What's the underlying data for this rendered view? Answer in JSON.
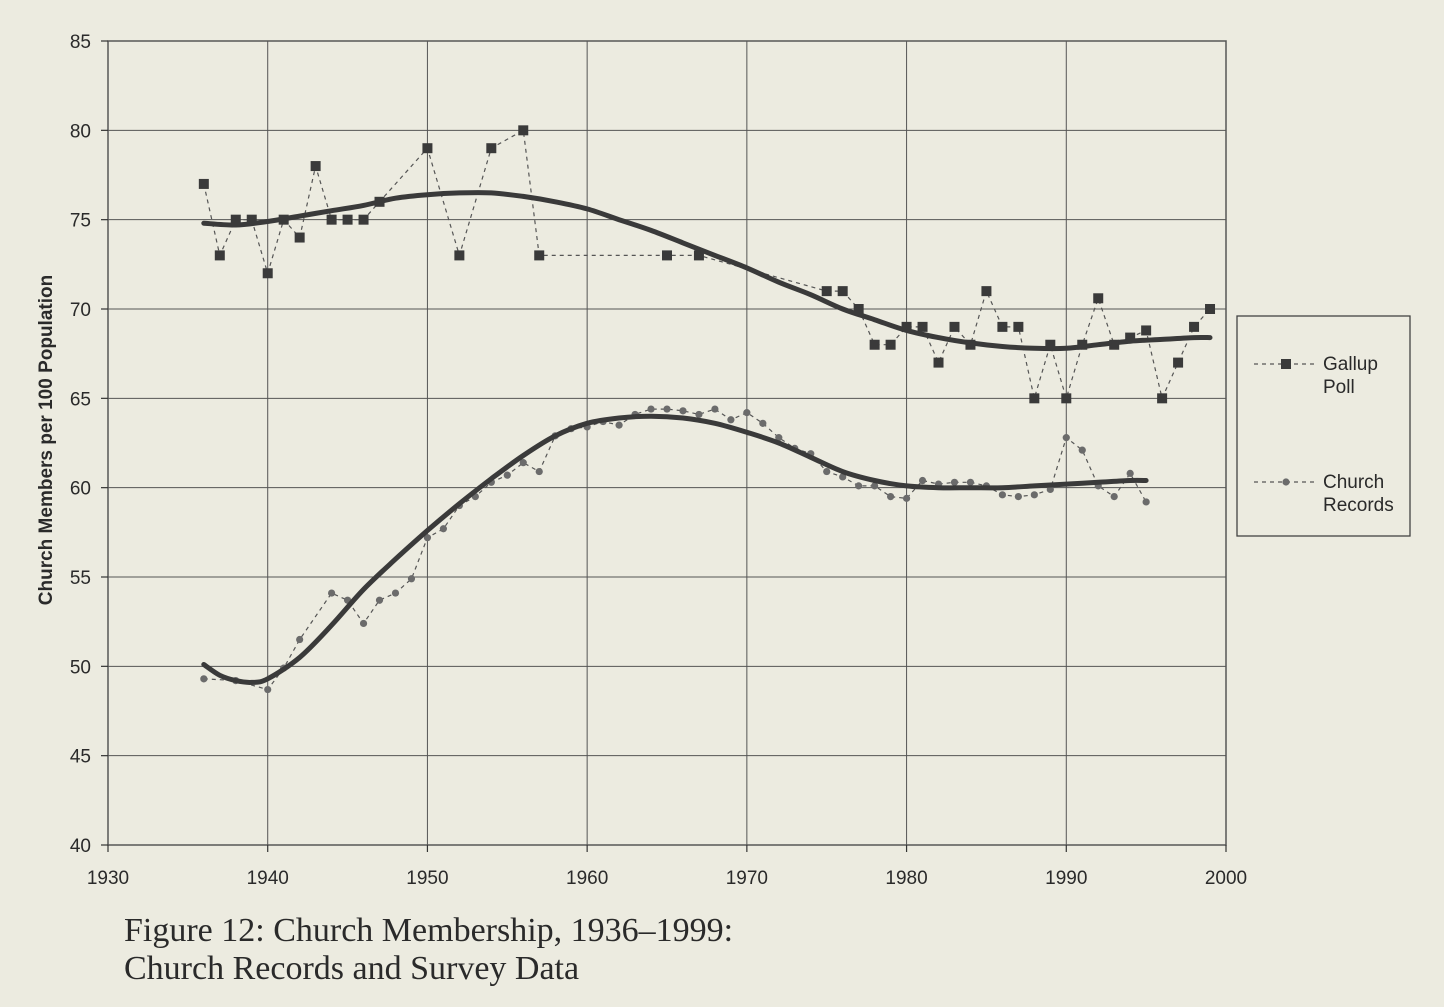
{
  "caption": {
    "line1": "Figure 12: Church Membership, 1936–1999:",
    "line2": "Church Records and Survey Data"
  },
  "chart_data": {
    "type": "line",
    "title": "",
    "xlabel": "",
    "ylabel": "Church Members per 100 Population",
    "xlim": [
      1930,
      2000
    ],
    "ylim": [
      40,
      85
    ],
    "x_ticks": [
      1930,
      1940,
      1950,
      1960,
      1970,
      1980,
      1990,
      2000
    ],
    "y_ticks": [
      40,
      45,
      50,
      55,
      60,
      65,
      70,
      75,
      80,
      85
    ],
    "grid": true,
    "legend_position": "right",
    "series": [
      {
        "name": "Gallup Poll",
        "marker": "square",
        "line_style": "dashed",
        "x": [
          1936,
          1937,
          1938,
          1939,
          1940,
          1941,
          1942,
          1943,
          1944,
          1945,
          1946,
          1947,
          1950,
          1952,
          1954,
          1956,
          1957,
          1965,
          1967,
          1975,
          1976,
          1977,
          1978,
          1979,
          1980,
          1981,
          1982,
          1983,
          1984,
          1985,
          1986,
          1987,
          1988,
          1989,
          1990,
          1991,
          1992,
          1993,
          1994,
          1995,
          1996,
          1997,
          1998,
          1999
        ],
        "y": [
          77,
          73,
          75,
          75,
          72,
          75,
          74,
          78,
          75,
          75,
          75,
          76,
          79,
          73,
          79,
          80,
          73,
          73,
          73,
          71,
          71,
          70,
          68,
          68,
          69,
          69,
          67,
          69,
          68,
          71,
          69,
          69,
          65,
          68,
          65,
          68,
          70.6,
          68,
          68.4,
          68.8,
          65,
          67,
          69,
          70
        ]
      },
      {
        "name": "Church Records",
        "marker": "circle",
        "line_style": "dashed",
        "x": [
          1936,
          1938,
          1940,
          1941,
          1942,
          1944,
          1945,
          1946,
          1947,
          1948,
          1949,
          1950,
          1951,
          1952,
          1953,
          1954,
          1955,
          1956,
          1957,
          1958,
          1959,
          1960,
          1961,
          1962,
          1963,
          1964,
          1965,
          1966,
          1967,
          1968,
          1969,
          1970,
          1971,
          1972,
          1973,
          1974,
          1975,
          1976,
          1977,
          1978,
          1979,
          1980,
          1981,
          1982,
          1983,
          1984,
          1985,
          1986,
          1987,
          1988,
          1989,
          1990,
          1991,
          1992,
          1993,
          1994,
          1995
        ],
        "y": [
          49.3,
          49.2,
          48.7,
          49.9,
          51.5,
          54.1,
          53.7,
          52.4,
          53.7,
          54.1,
          54.9,
          57.2,
          57.7,
          59,
          59.5,
          60.3,
          60.7,
          61.4,
          60.9,
          62.9,
          63.3,
          63.4,
          63.7,
          63.5,
          64.1,
          64.4,
          64.4,
          64.3,
          64.1,
          64.4,
          63.8,
          64.2,
          63.6,
          62.8,
          62.2,
          61.9,
          60.9,
          60.6,
          60.1,
          60.1,
          59.5,
          59.4,
          60.4,
          60.2,
          60.3,
          60.3,
          60.1,
          59.6,
          59.5,
          59.6,
          59.9,
          62.8,
          62.1,
          60.1,
          59.5,
          60.8,
          59.2
        ]
      },
      {
        "name": "",
        "style": "bold smoothed trend",
        "x": [
          1936,
          1938,
          1940,
          1942,
          1944,
          1946,
          1948,
          1950,
          1952,
          1954,
          1956,
          1958,
          1960,
          1962,
          1964,
          1966,
          1968,
          1970,
          1972,
          1974,
          1976,
          1978,
          1980,
          1982,
          1984,
          1986,
          1988,
          1990,
          1992,
          1994,
          1996,
          1998,
          1999
        ],
        "y": [
          74.8,
          74.7,
          74.9,
          75.2,
          75.5,
          75.8,
          76.2,
          76.4,
          76.5,
          76.5,
          76.3,
          76.0,
          75.6,
          75.0,
          74.4,
          73.7,
          73.0,
          72.3,
          71.5,
          70.8,
          70.0,
          69.4,
          68.8,
          68.4,
          68.1,
          67.9,
          67.8,
          67.8,
          68.0,
          68.2,
          68.3,
          68.4,
          68.4
        ]
      },
      {
        "name": "",
        "style": "bold smoothed trend",
        "x": [
          1936,
          1937,
          1938,
          1939,
          1940,
          1942,
          1944,
          1946,
          1948,
          1950,
          1952,
          1954,
          1956,
          1958,
          1960,
          1962,
          1964,
          1966,
          1968,
          1970,
          1972,
          1974,
          1976,
          1978,
          1980,
          1982,
          1984,
          1986,
          1988,
          1990,
          1992,
          1994,
          1995
        ],
        "y": [
          50.1,
          49.5,
          49.2,
          49.1,
          49.3,
          50.5,
          52.3,
          54.3,
          56.0,
          57.6,
          59.1,
          60.5,
          61.8,
          62.9,
          63.6,
          63.9,
          64.0,
          63.9,
          63.6,
          63.1,
          62.5,
          61.7,
          60.9,
          60.4,
          60.1,
          60.0,
          60.0,
          60.0,
          60.1,
          60.2,
          60.3,
          60.4,
          60.4
        ]
      }
    ]
  }
}
